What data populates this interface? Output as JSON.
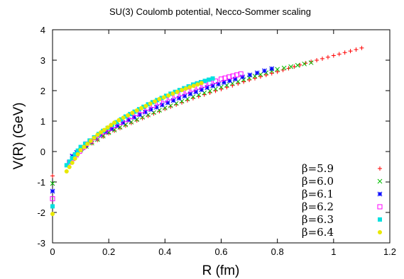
{
  "chart_data": {
    "type": "scatter",
    "title": "SU(3) Coulomb potential, Necco-Sommer scaling",
    "xlabel": "R (fm)",
    "ylabel": "V(R) (GeV)",
    "xlim": [
      0,
      1.2
    ],
    "ylim": [
      -3,
      4
    ],
    "xticks": [
      "0",
      "0.2",
      "0.4",
      "0.6",
      "0.8",
      "1",
      "1.2"
    ],
    "yticks": [
      "-3",
      "-2",
      "-1",
      "0",
      "1",
      "2",
      "3",
      "4"
    ],
    "xtick_values": [
      0,
      0.2,
      0.4,
      0.6,
      0.8,
      1.0,
      1.2
    ],
    "ytick_values": [
      -3,
      -2,
      -1,
      0,
      1,
      2,
      3,
      4
    ],
    "grid": false,
    "legend_position": "bottom-right",
    "series": [
      {
        "name": "β=5.9",
        "color": "#ff0000",
        "marker": "plus",
        "x": [
          0,
          0.1,
          0.2,
          0.3,
          0.4,
          0.5,
          0.6,
          0.7,
          0.8,
          0.9,
          1.0,
          1.1
        ],
        "y": [
          -0.8,
          0.05,
          0.6,
          1.02,
          1.4,
          1.75,
          2.05,
          2.35,
          2.62,
          2.9,
          3.15,
          3.4
        ]
      },
      {
        "name": "β=6.0",
        "color": "#00c000",
        "marker": "cross",
        "x": [
          0,
          0.1,
          0.2,
          0.3,
          0.4,
          0.5,
          0.6,
          0.7,
          0.8,
          0.92
        ],
        "y": [
          -1.05,
          0.05,
          0.62,
          1.05,
          1.43,
          1.8,
          2.12,
          2.42,
          2.7,
          2.92
        ]
      },
      {
        "name": "β=6.1",
        "color": "#0000ff",
        "marker": "star",
        "x": [
          0,
          0.07,
          0.15,
          0.25,
          0.35,
          0.45,
          0.55,
          0.65,
          0.78
        ],
        "y": [
          -1.3,
          -0.15,
          0.45,
          0.95,
          1.38,
          1.75,
          2.1,
          2.38,
          2.72
        ]
      },
      {
        "name": "β=6.2",
        "color": "#ff00ff",
        "marker": "square-open",
        "x": [
          0,
          0.06,
          0.12,
          0.2,
          0.3,
          0.4,
          0.5,
          0.6,
          0.67
        ],
        "y": [
          -1.55,
          -0.35,
          0.25,
          0.75,
          1.25,
          1.7,
          2.05,
          2.38,
          2.55
        ]
      },
      {
        "name": "β=6.3",
        "color": "#00e0e0",
        "marker": "square-filled",
        "x": [
          0,
          0.05,
          0.1,
          0.18,
          0.26,
          0.34,
          0.42,
          0.5,
          0.57
        ],
        "y": [
          -1.8,
          -0.45,
          0.15,
          0.68,
          1.15,
          1.55,
          1.9,
          2.2,
          2.4
        ]
      },
      {
        "name": "β=6.4",
        "color": "#e8e800",
        "marker": "circle-filled",
        "x": [
          0,
          0.05,
          0.1,
          0.16,
          0.22,
          0.3,
          0.38,
          0.46,
          0.53
        ],
        "y": [
          -2.05,
          -0.65,
          0.05,
          0.55,
          0.95,
          1.35,
          1.72,
          2.02,
          2.25
        ]
      }
    ]
  }
}
